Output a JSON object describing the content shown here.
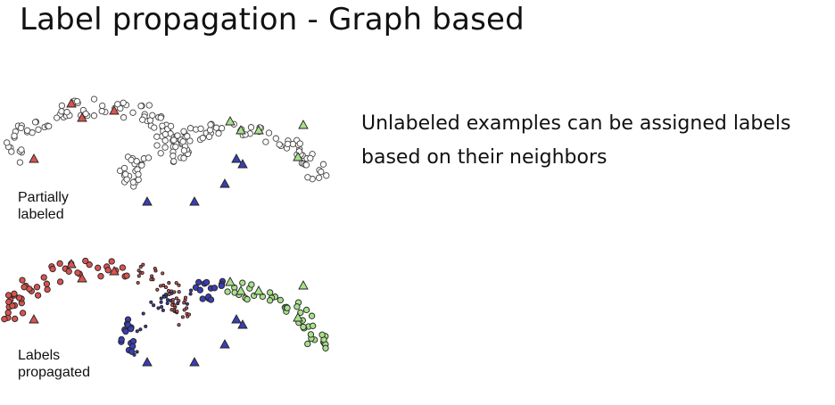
{
  "slide": {
    "title": "Label propagation - Graph based",
    "description": "Unlabeled examples can be assigned labels based on their neighbors"
  },
  "figure": {
    "top_plot_label": "Partially\nlabeled",
    "bottom_plot_label": "Labels\npropagated",
    "colors": {
      "unlabeled_fill": "#ffffff",
      "unlabeled_stroke": "#444444",
      "class_red": "#d9534f",
      "class_blue": "#3a3fb0",
      "class_green": "#a8e08a",
      "edge_dark": "#222222"
    }
  }
}
